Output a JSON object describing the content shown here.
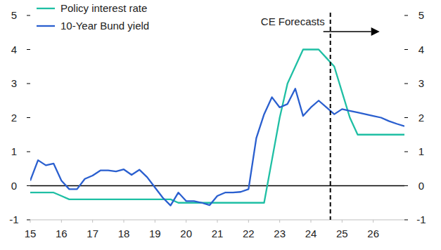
{
  "chart_data": {
    "type": "line",
    "x": [
      15,
      15.25,
      15.5,
      15.75,
      16,
      16.25,
      16.5,
      16.75,
      17,
      17.25,
      17.5,
      17.75,
      18,
      18.25,
      18.5,
      18.75,
      19,
      19.25,
      19.5,
      19.75,
      20,
      20.25,
      20.5,
      20.75,
      21,
      21.25,
      21.5,
      21.75,
      22,
      22.25,
      22.5,
      22.75,
      23,
      23.25,
      23.5,
      23.75,
      24,
      24.25,
      24.5,
      24.75,
      25,
      25.25,
      25.5,
      25.75,
      26,
      26.25,
      26.5,
      26.75,
      27
    ],
    "series": [
      {
        "name": "Policy interest rate",
        "color": "#1fbfa4",
        "values": [
          -0.2,
          -0.2,
          -0.2,
          -0.2,
          -0.3,
          -0.4,
          -0.4,
          -0.4,
          -0.4,
          -0.4,
          -0.4,
          -0.4,
          -0.4,
          -0.4,
          -0.4,
          -0.4,
          -0.4,
          -0.4,
          -0.4,
          -0.5,
          -0.5,
          -0.5,
          -0.5,
          -0.5,
          -0.5,
          -0.5,
          -0.5,
          -0.5,
          -0.5,
          -0.5,
          -0.5,
          0.75,
          2.0,
          3.0,
          3.5,
          4.0,
          4.0,
          4.0,
          3.75,
          3.5,
          2.75,
          2.0,
          1.5,
          1.5,
          1.5,
          1.5,
          1.5,
          1.5,
          1.5
        ]
      },
      {
        "name": "10-Year Bund yield",
        "color": "#2a5fcf",
        "values": [
          0.15,
          0.75,
          0.6,
          0.65,
          0.15,
          -0.1,
          -0.1,
          0.2,
          0.3,
          0.45,
          0.45,
          0.42,
          0.48,
          0.32,
          0.47,
          0.25,
          -0.05,
          -0.35,
          -0.58,
          -0.2,
          -0.45,
          -0.45,
          -0.5,
          -0.57,
          -0.3,
          -0.2,
          -0.2,
          -0.18,
          -0.1,
          1.4,
          2.1,
          2.6,
          2.3,
          2.4,
          2.85,
          2.05,
          2.3,
          2.5,
          2.3,
          2.1,
          2.25,
          2.2,
          2.15,
          2.1,
          2.05,
          2.0,
          1.9,
          1.82,
          1.75
        ]
      }
    ],
    "xlim": [
      15,
      27
    ],
    "xticks": [
      15,
      16,
      17,
      18,
      19,
      20,
      21,
      22,
      23,
      24,
      25,
      26
    ],
    "ylim": [
      -1,
      5
    ],
    "yticks": [
      -1,
      0,
      1,
      2,
      3,
      4,
      5
    ],
    "y2lim": [
      -1,
      5
    ],
    "y2ticks": [
      -1,
      0,
      1,
      2,
      3,
      4,
      5
    ],
    "annotations": [
      {
        "text": "CE Forecasts",
        "x": 24.625
      }
    ],
    "legend": "upper left",
    "grid": false
  }
}
